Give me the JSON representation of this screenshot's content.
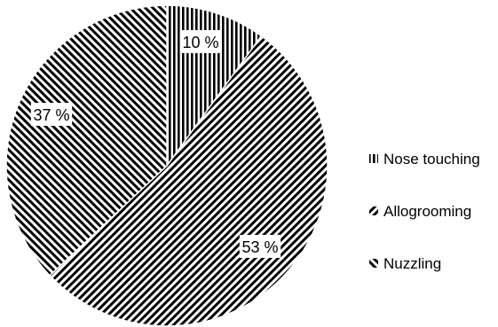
{
  "chart_data": {
    "type": "pie",
    "categories": [
      "Nose touching",
      "Allogrooming",
      "Nuzzling"
    ],
    "values": [
      10,
      53,
      37
    ],
    "value_labels": [
      "10 %",
      "53 %",
      "37 %"
    ],
    "start_angle_deg": 0,
    "direction": "clockwise",
    "legend_position": "right",
    "patterns": [
      "vertical-stripes",
      "diagonal-stripes",
      "anti-diagonal-stripes"
    ],
    "colors": {
      "ink": "#000000",
      "background": "#ffffff"
    }
  }
}
